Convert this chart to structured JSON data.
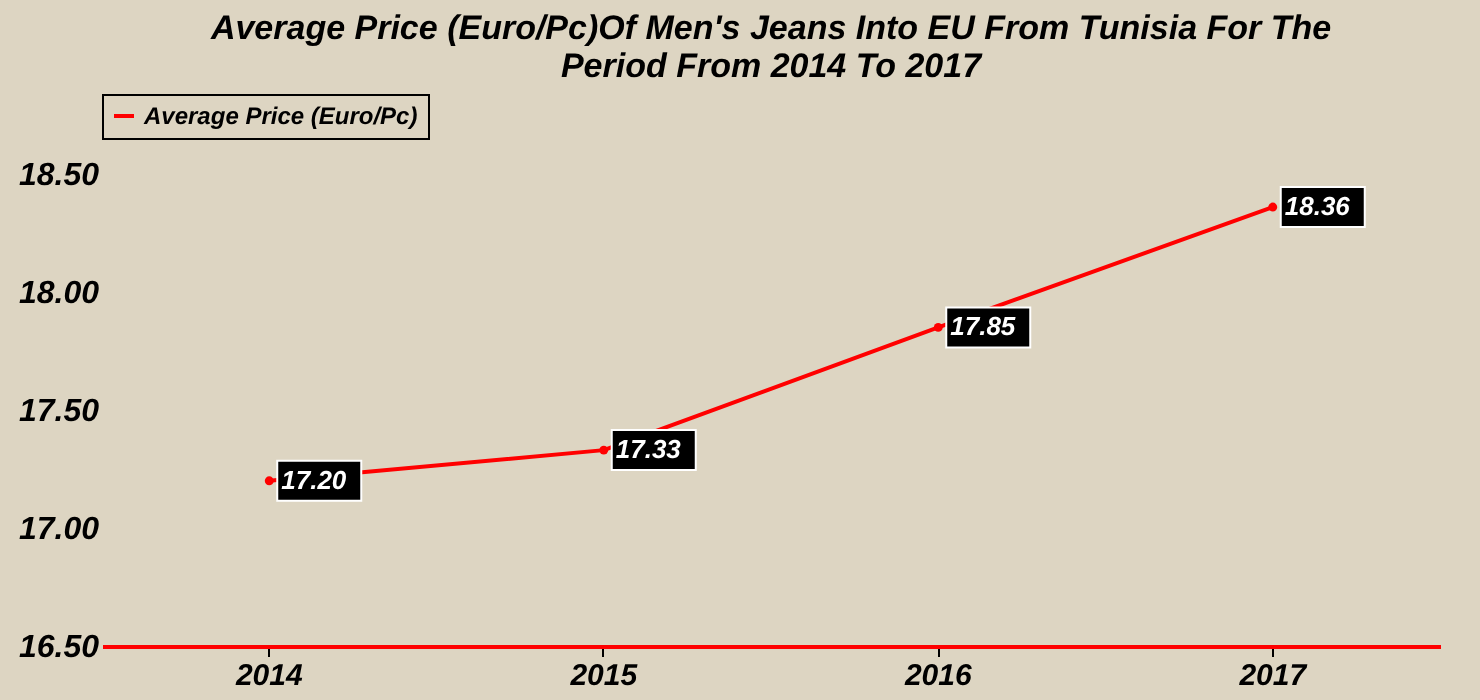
{
  "chart_data": {
    "type": "line",
    "title": [
      "Average Price (Euro/Pc)Of Men's Jeans Into EU From Tunisia For The",
      "Period From 2014 To 2017"
    ],
    "categories": [
      "2014",
      "2015",
      "2016",
      "2017"
    ],
    "series": [
      {
        "name": "Average Price (Euro/Pc)",
        "color": "#ff0000",
        "values": [
          17.2,
          17.33,
          17.85,
          18.36
        ],
        "value_labels": [
          "17.20",
          "17.33",
          "17.85",
          "18.36"
        ]
      }
    ],
    "ylim": [
      16.5,
      18.5
    ],
    "yticks": [
      {
        "value": 16.5,
        "label": "16.50"
      },
      {
        "value": 17,
        "label": "17.00"
      },
      {
        "value": 17.5,
        "label": "17.50"
      },
      {
        "value": 18,
        "label": "18.00"
      },
      {
        "value": 18.5,
        "label": "18.50"
      }
    ],
    "legend": "top",
    "grid": false,
    "marker": "circle",
    "line_style": "solid"
  }
}
